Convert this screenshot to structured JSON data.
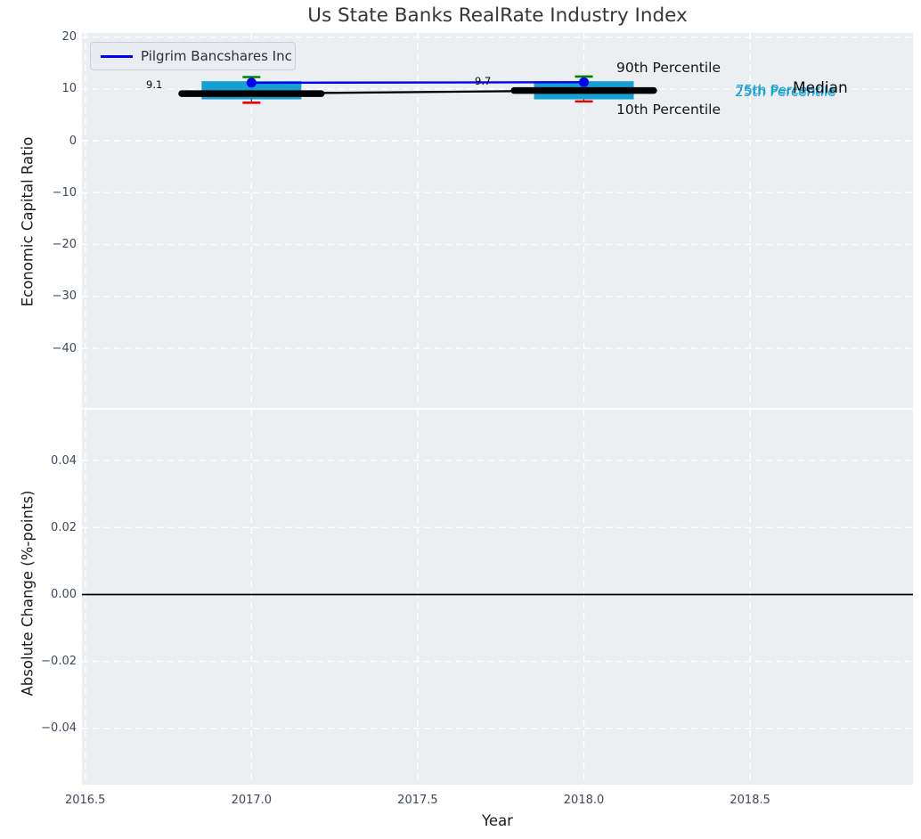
{
  "title": "Us State Banks RealRate Industry Index",
  "legend": {
    "label": "Pilgrim Bancshares Inc"
  },
  "axes": {
    "x": {
      "label": "Year",
      "lim": [
        2016.49,
        2018.99
      ],
      "ticks": [
        {
          "v": 2016.5,
          "label": "2016.5"
        },
        {
          "v": 2017.0,
          "label": "2017.0"
        },
        {
          "v": 2017.5,
          "label": "2017.5"
        },
        {
          "v": 2018.0,
          "label": "2018.0"
        },
        {
          "v": 2018.5,
          "label": "2018.5"
        }
      ]
    },
    "top": {
      "label": "Economic Capital Ratio",
      "lim": [
        -51.5,
        20.8
      ],
      "grid": true,
      "ticks": [
        {
          "v": 20,
          "label": "20"
        },
        {
          "v": 10,
          "label": "10"
        },
        {
          "v": 0,
          "label": "0"
        },
        {
          "v": -10,
          "label": "−10"
        },
        {
          "v": -20,
          "label": "−20"
        },
        {
          "v": -30,
          "label": "−30"
        },
        {
          "v": -40,
          "label": "−40"
        }
      ]
    },
    "bottom": {
      "label": "Absolute Change (%-points)",
      "lim": [
        -0.0568,
        0.0552
      ],
      "grid": true,
      "ticks": [
        {
          "v": 0.04,
          "label": "0.04"
        },
        {
          "v": 0.02,
          "label": "0.02"
        },
        {
          "v": 0.0,
          "label": "0.00"
        },
        {
          "v": -0.02,
          "label": "−0.02"
        },
        {
          "v": -0.04,
          "label": "−0.04"
        }
      ]
    }
  },
  "chart_data": {
    "type": "box+line",
    "title": "Us State Banks RealRate Industry Index",
    "xlabel": "Year",
    "ylabel_top": "Economic Capital Ratio",
    "ylabel_bottom": "Absolute Change (%-points)",
    "x": [
      2017,
      2018
    ],
    "series": [
      {
        "name": "Pilgrim Bancshares Inc",
        "values": [
          11.2,
          11.3
        ],
        "color": "#0000ee"
      }
    ],
    "industry_boxes": [
      {
        "year": 2017,
        "p90": 12.3,
        "p75": 11.5,
        "median": 9.1,
        "p25": 8.0,
        "p10": 7.35
      },
      {
        "year": 2018,
        "p90": 12.4,
        "p75": 11.5,
        "median": 9.7,
        "p25": 8.0,
        "p10": 7.6
      }
    ],
    "median_line": {
      "x": [
        2017,
        2018
      ],
      "values": [
        9.1,
        9.7
      ]
    },
    "bottom_zero_line": 0.0,
    "legend_position": "upper left",
    "colors": {
      "box": "#16a0d2",
      "p90_cap": "#008000",
      "p10_cap": "#ee0000",
      "median": "#000000",
      "company": "#0000ee",
      "panel_background": "#eceff1",
      "grid": "#ffffff"
    }
  },
  "annotations": {
    "median_2017": "9.1",
    "median_2018": "9.7"
  },
  "percentile_labels": {
    "p90": "90th Percentile",
    "p10": "10th Percentile",
    "p75": "75th Percentile",
    "p25": "25th Percentile",
    "median": "Median"
  }
}
